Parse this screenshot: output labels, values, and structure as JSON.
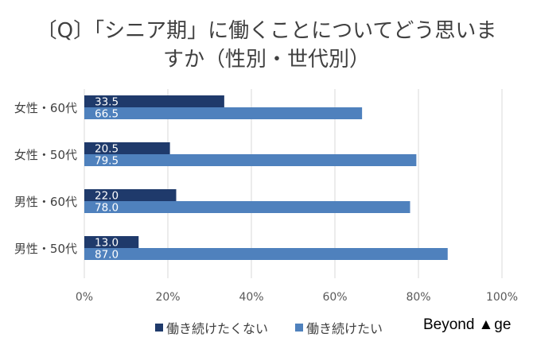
{
  "chart_data": {
    "type": "bar",
    "orientation": "horizontal",
    "title_line1": "〔Q〕「シニア期」に働くことについてどう思いま",
    "title_line2": "すか（性別・世代別）",
    "categories": [
      "女性・60代",
      "女性・50代",
      "男性・60代",
      "男性・50代"
    ],
    "series": [
      {
        "name": "働き続けたくない",
        "color": "#1f3a6b",
        "values": [
          33.5,
          20.5,
          22.0,
          13.0
        ],
        "labels": [
          "33.5",
          "20.5",
          "22.0",
          "13.0"
        ]
      },
      {
        "name": "働き続けたい",
        "color": "#4f81bd",
        "values": [
          66.5,
          79.5,
          78.0,
          87.0
        ],
        "labels": [
          "66.5",
          "79.5",
          "78.0",
          "87.0"
        ]
      }
    ],
    "xlim": [
      0,
      100
    ],
    "xticks": [
      "0%",
      "20%",
      "40%",
      "60%",
      "80%",
      "100%"
    ],
    "grid": true,
    "legend_position": "bottom"
  },
  "brand": {
    "text_before": "Beyond ",
    "triangle": "▲",
    "text_after": "ge"
  }
}
